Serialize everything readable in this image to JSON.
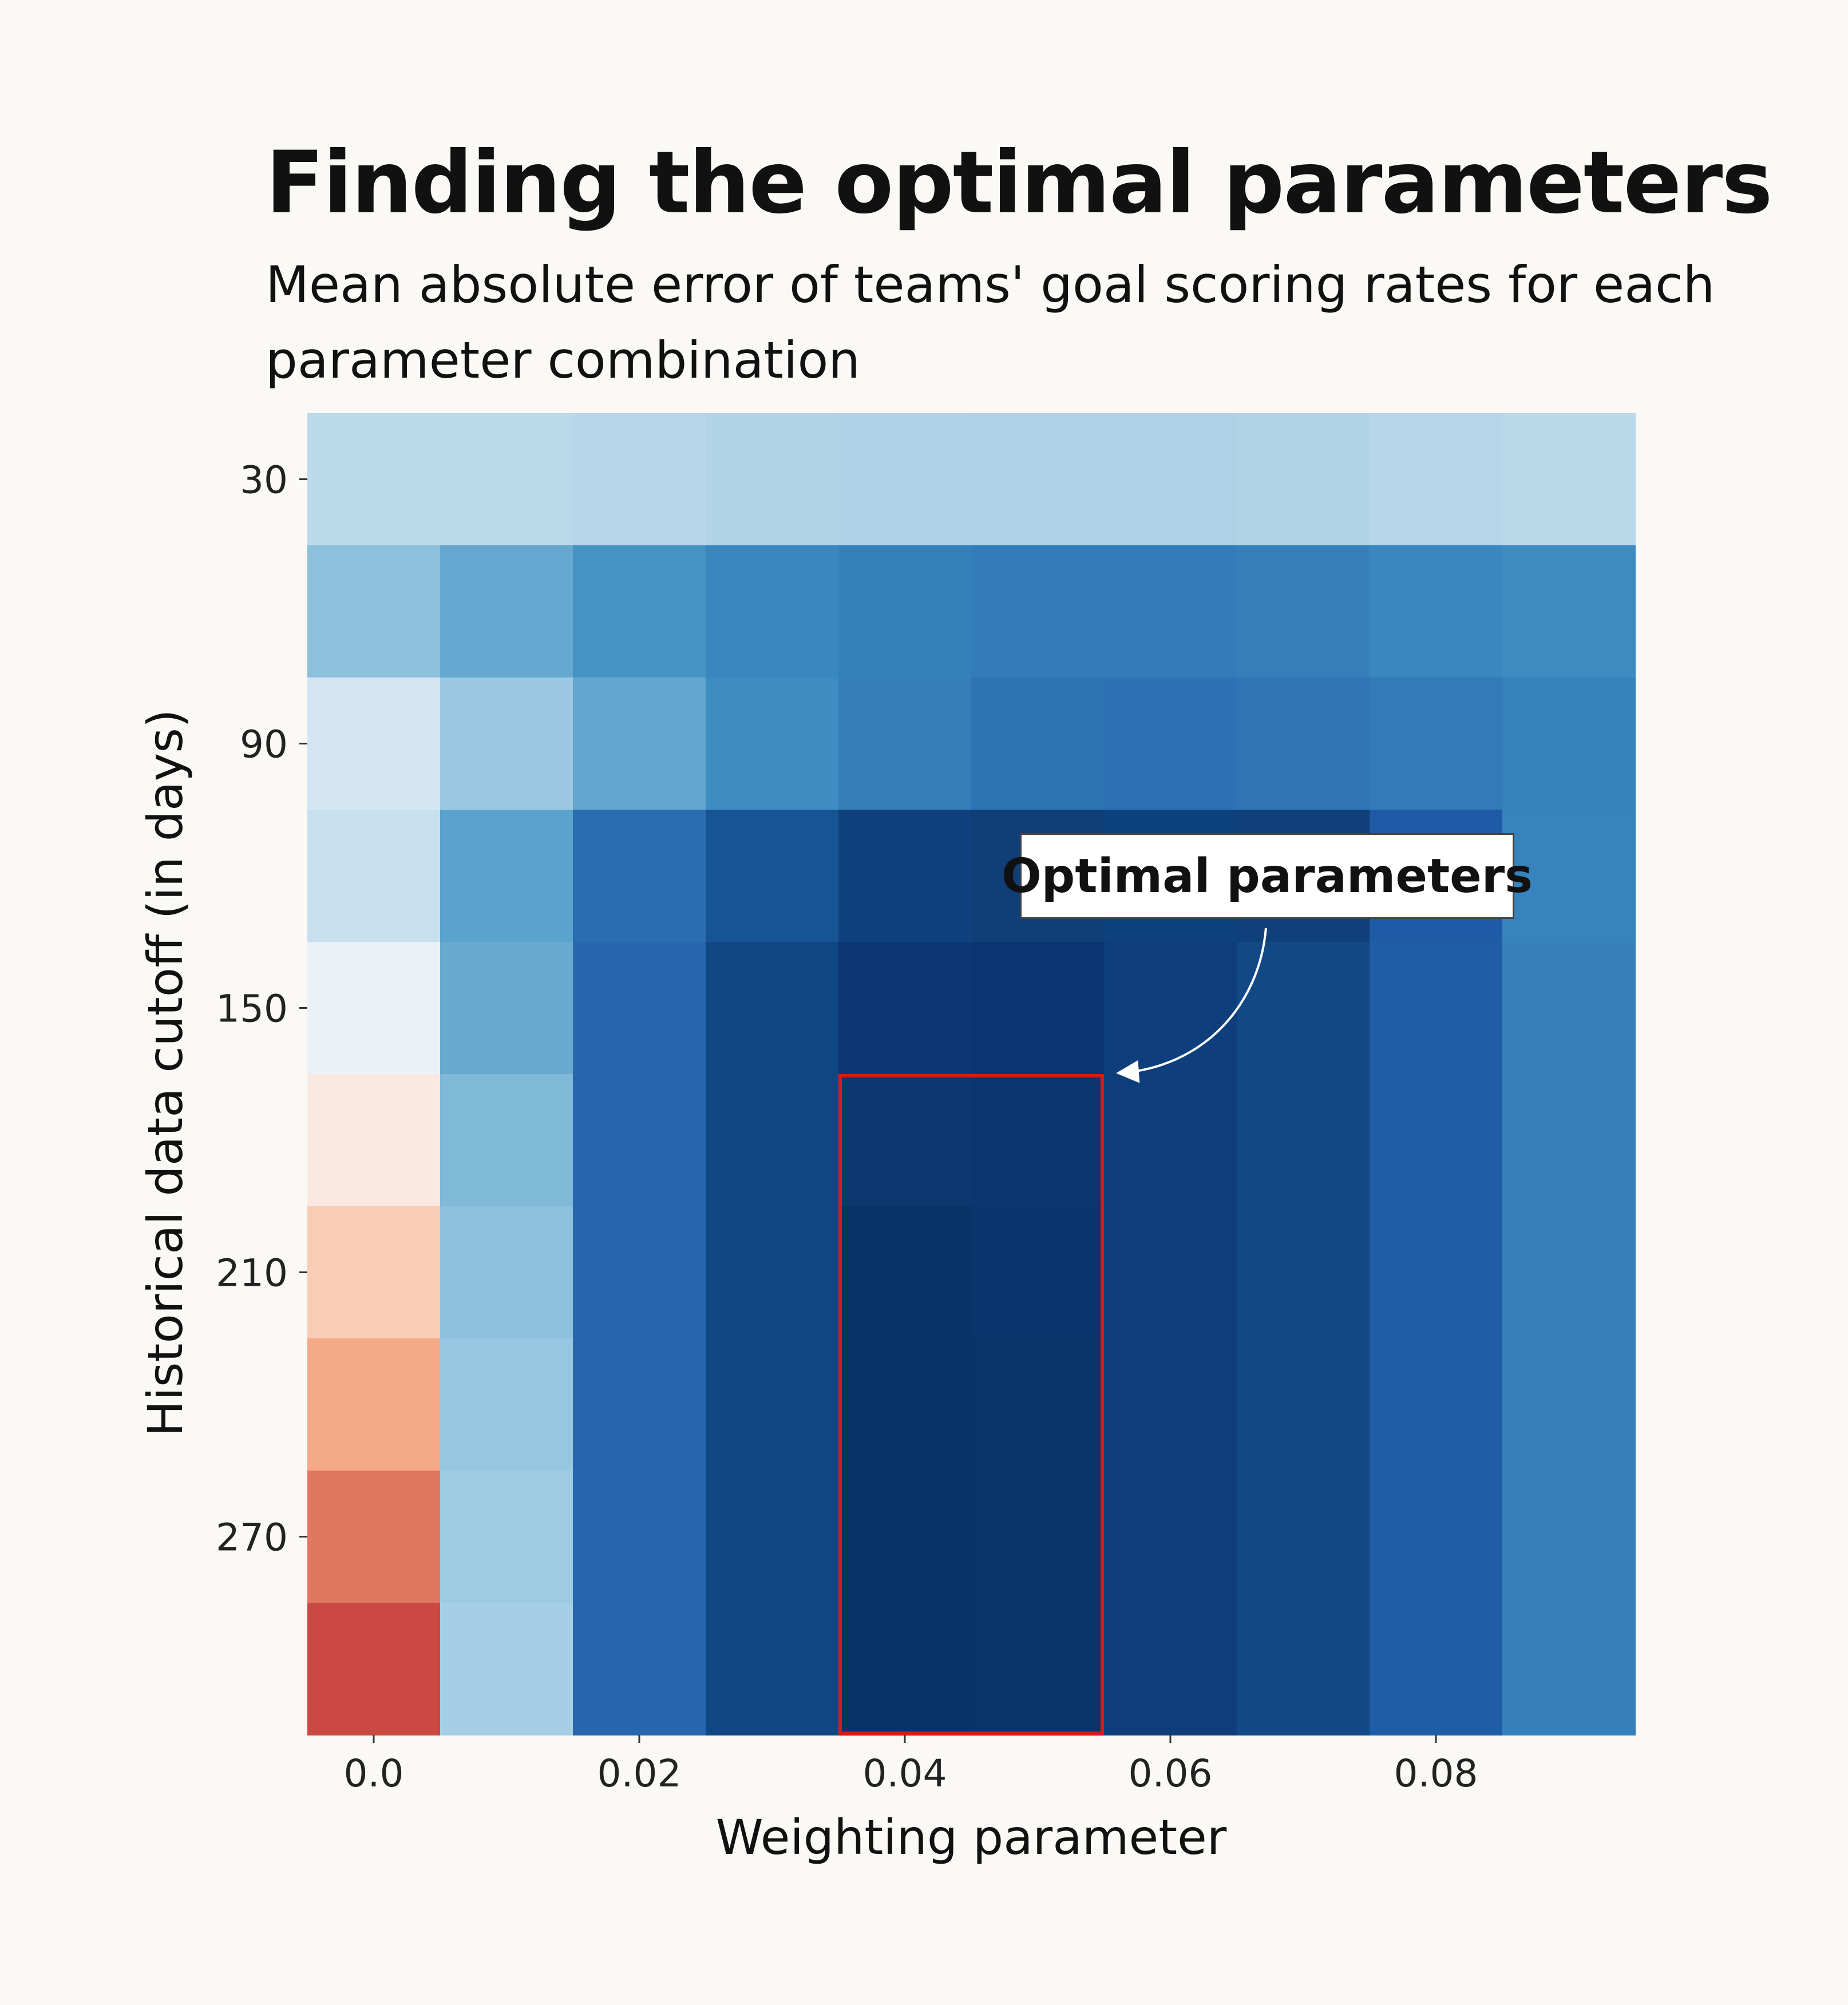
{
  "header": {
    "title": "Finding the optimal parameters",
    "subtitle": "Mean absolute error of teams' goal scoring rates for each parameter combination"
  },
  "annotation": {
    "label": "Optimal parameters",
    "highlight_color": "#D7191C"
  },
  "chart_data": {
    "type": "heatmap",
    "xlabel": "Weighting parameter",
    "ylabel": "Historical data cutoff (in days)",
    "x": [
      0.0,
      0.01,
      0.02,
      0.03,
      0.04,
      0.05,
      0.06,
      0.07,
      0.08,
      0.09
    ],
    "y": [
      30,
      60,
      90,
      120,
      150,
      180,
      210,
      240,
      270,
      300
    ],
    "x_ticks": [
      0.0,
      0.02,
      0.04,
      0.06,
      0.08
    ],
    "x_tick_labels": [
      "0.0",
      "0.02",
      "0.04",
      "0.06",
      "0.08"
    ],
    "y_ticks": [
      30,
      90,
      150,
      210,
      270
    ],
    "y_tick_labels": [
      "30",
      "90",
      "150",
      "210",
      "270"
    ],
    "colormap": "RdBu (red = higher error, blue = lower error)",
    "grid": false,
    "colors": [
      [
        "#BCDAEB",
        "#BBD9EA",
        "#B7D6E9",
        "#B3D3E7",
        "#B1D2E6",
        "#B0D1E5",
        "#B0D1E5",
        "#B2D2E6",
        "#B7D6E9",
        "#BAD8EA"
      ],
      [
        "#8CC1DC",
        "#65A8CF",
        "#4393C3",
        "#3A87BF",
        "#3480BB",
        "#327DB9",
        "#327DB9",
        "#357FBA",
        "#3A87BF",
        "#3D8CC1"
      ],
      [
        "#D4E6F3",
        "#9CC9E1",
        "#63A6CE",
        "#3E8DC2",
        "#357EBA",
        "#2C73B4",
        "#2C71B3",
        "#2F74B5",
        "#327AB8",
        "#3682BD"
      ],
      [
        "#C8E0EE",
        "#5AA3CD",
        "#2A6DB0",
        "#165495",
        "#0E417D",
        "#103F78",
        "#0E427F",
        "#0F407A",
        "#1E5AA5",
        "#3683BD"
      ],
      [
        "#EBF2F7",
        "#6AAAD0",
        "#2866AE",
        "#114684",
        "#0B3874",
        "#0A3572",
        "#0E3E7C",
        "#124886",
        "#1F5EA7",
        "#3680BC"
      ],
      [
        "#FAE9E0",
        "#80B8D8",
        "#2766AE",
        "#114684",
        "#0B386F",
        "#0A366E",
        "#0D3E7B",
        "#124886",
        "#1F5EA6",
        "#3680BC"
      ],
      [
        "#F9CCB5",
        "#8CC0DD",
        "#2766AE",
        "#114684",
        "#083366",
        "#0A346C",
        "#0D3E7B",
        "#124886",
        "#1F5EA6",
        "#3680BC"
      ],
      [
        "#F4A987",
        "#97C6E0",
        "#2766AE",
        "#114684",
        "#083366",
        "#093468",
        "#0D3E7B",
        "#124886",
        "#1F5EA6",
        "#3680BC"
      ],
      [
        "#E07860",
        "#9DCBE2",
        "#2766AE",
        "#114684",
        "#083366",
        "#093468",
        "#0D3E7B",
        "#124886",
        "#1F5EA6",
        "#3680BC"
      ],
      [
        "#CA4A43",
        "#A5CFE5",
        "#2766AE",
        "#114684",
        "#083366",
        "#093468",
        "#0D3E7B",
        "#124886",
        "#1F5EA6",
        "#3680BC"
      ]
    ],
    "highlight": {
      "x_range": [
        0.04,
        0.05
      ],
      "y_range": [
        180,
        300
      ]
    }
  }
}
